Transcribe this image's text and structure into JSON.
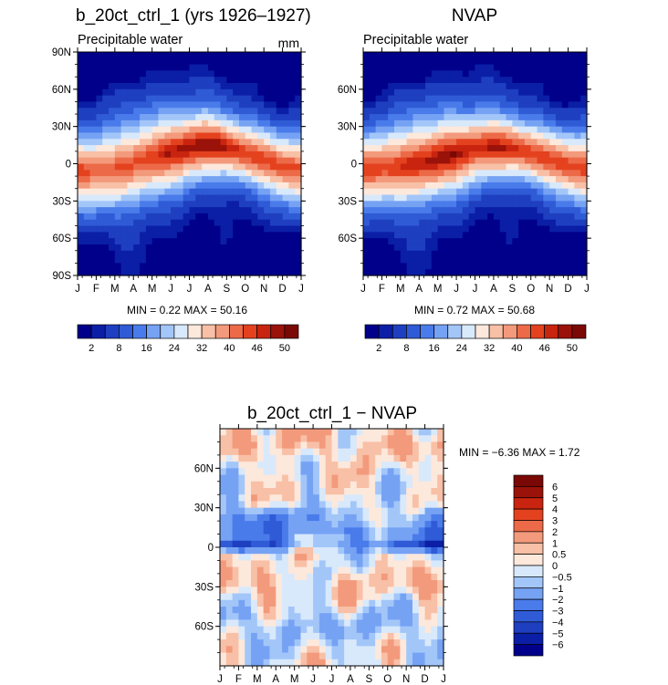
{
  "palette": {
    "abs": [
      "#00008b",
      "#0b1fa6",
      "#1e3fc0",
      "#2f5bd6",
      "#4a7bea",
      "#76a2f4",
      "#a3c6f9",
      "#d8e9fb",
      "#fde8dc",
      "#f8c0a6",
      "#f39a7c",
      "#ec6a48",
      "#e4421f",
      "#c8240f",
      "#9a1209",
      "#7a0804"
    ],
    "diff": [
      "#00008b",
      "#0b1fa6",
      "#1e3fc0",
      "#2f5bd6",
      "#4a7bea",
      "#76a2f4",
      "#a3c6f9",
      "#d8e9fb",
      "#fde8dc",
      "#f8c0a6",
      "#f39a7c",
      "#ec6a48",
      "#e4421f",
      "#c8240f",
      "#9a1209",
      "#7a0804"
    ]
  },
  "chart_data": [
    {
      "type": "heatmap",
      "title": "b_20ct_ctrl_1 (yrs 1926–1927)",
      "subtitle": "Precipitable water",
      "units": "mm",
      "xlabel": "",
      "ylabel": "",
      "x_ticks": [
        "J",
        "F",
        "M",
        "A",
        "M",
        "J",
        "J",
        "A",
        "S",
        "O",
        "N",
        "D",
        "J"
      ],
      "y_ticks": [
        "90N",
        "60N",
        "30N",
        "0",
        "30S",
        "60S",
        "90S"
      ],
      "min_max_text": "MIN =    0.22 MAX =   50.16",
      "min": 0.22,
      "max": 50.16,
      "colorbar_labels": [
        "2",
        "8",
        "16",
        "24",
        "32",
        "40",
        "46",
        "50"
      ],
      "colorbar_levels": [
        2,
        4,
        8,
        12,
        16,
        20,
        24,
        28,
        32,
        36,
        40,
        43,
        46,
        48,
        50
      ],
      "peak_lat_by_month": [
        -5,
        -6,
        -4,
        0,
        5,
        10,
        14,
        16,
        13,
        8,
        3,
        -2,
        -5
      ],
      "peak_value_by_month": [
        44,
        43,
        43,
        45,
        46,
        48,
        50,
        50,
        48,
        46,
        45,
        44,
        44
      ],
      "grid": false
    },
    {
      "type": "heatmap",
      "title": "NVAP",
      "subtitle": "Precipitable water",
      "x_ticks": [
        "J",
        "F",
        "M",
        "A",
        "M",
        "J",
        "J",
        "A",
        "S",
        "O",
        "N",
        "D",
        "J"
      ],
      "y_ticks": [
        "60N",
        "30N",
        "0",
        "30S",
        "60S"
      ],
      "min_max_text": "MIN =    0.72 MAX =   50.68",
      "min": 0.72,
      "max": 50.68,
      "colorbar_labels": [
        "2",
        "8",
        "16",
        "24",
        "32",
        "40",
        "46",
        "50"
      ],
      "colorbar_levels": [
        2,
        4,
        8,
        12,
        16,
        20,
        24,
        28,
        32,
        36,
        40,
        43,
        46,
        48,
        50
      ],
      "peak_lat_by_month": [
        -4,
        -3,
        -2,
        1,
        4,
        9,
        13,
        14,
        12,
        8,
        3,
        -1,
        -4
      ],
      "peak_value_by_month": [
        45,
        45,
        46,
        49,
        50,
        49,
        48,
        48,
        47,
        46,
        45,
        45,
        45
      ],
      "grid": false
    },
    {
      "type": "heatmap",
      "title": "b_20ct_ctrl_1 − NVAP",
      "x_ticks": [
        "J",
        "F",
        "M",
        "A",
        "M",
        "J",
        "J",
        "A",
        "S",
        "O",
        "N",
        "D",
        "J"
      ],
      "y_ticks": [
        "60N",
        "30N",
        "0",
        "30S",
        "60S"
      ],
      "min_max_text": "MIN =   −6.36 MAX =    1.72",
      "min": -6.36,
      "max": 1.72,
      "colorbar_labels": [
        "6",
        "5",
        "4",
        "3",
        "2",
        "1",
        "0.5",
        "0",
        "−0.5",
        "−1",
        "−2",
        "−3",
        "−4",
        "−5",
        "−6"
      ],
      "colorbar_levels": [
        -6,
        -5,
        -4,
        -3,
        -2,
        -1,
        -0.5,
        0,
        0.5,
        1,
        2,
        3,
        4,
        5,
        6
      ],
      "grid": false
    }
  ]
}
